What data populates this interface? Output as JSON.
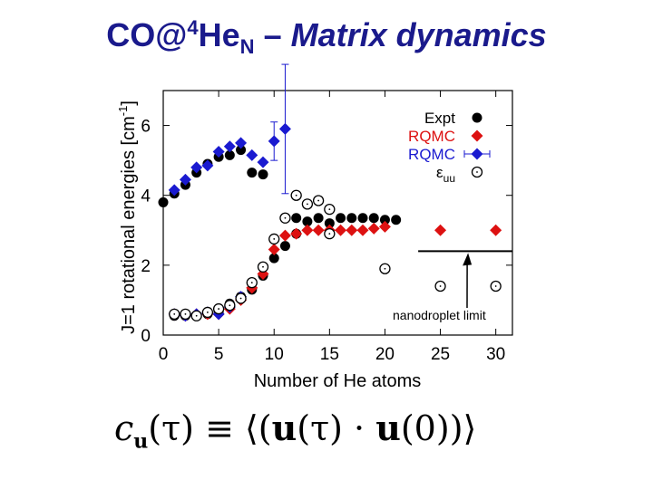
{
  "title": {
    "prefix": "CO@",
    "sup": "4",
    "species": "He",
    "sub": "N",
    "dash": " – ",
    "italic": "Matrix dynamics"
  },
  "formula": {
    "lhs": "c",
    "lhs_sub": "u",
    "lhs_arg": "(τ)",
    "equiv": " ≡ ",
    "rhs_open": "⟨(",
    "u1": "u",
    "arg1": "(τ)",
    "dot": " · ",
    "u2": "u",
    "arg2": "(0)",
    "rhs_close": ")⟩"
  },
  "chart_data": {
    "type": "scatter",
    "xlabel": "Number of He atoms",
    "ylabel": "J=1 rotational energies [cm",
    "ylabel_sup": "-1",
    "ylabel_end": "]",
    "xlim": [
      0,
      31.5
    ],
    "ylim": [
      0,
      7
    ],
    "xticks": [
      0,
      5,
      10,
      15,
      20,
      25,
      30
    ],
    "yticks": [
      0,
      2,
      4,
      6
    ],
    "grid": false,
    "legend": {
      "position": "top-right"
    },
    "annotation": {
      "text": "nanodroplet limit",
      "arrow_to": [
        27.5,
        2.4
      ]
    },
    "limit_line": {
      "x": [
        23,
        31.5
      ],
      "y": 2.4
    },
    "series": [
      {
        "name": "Expt",
        "marker": "filled-circle",
        "color": "#000000",
        "upper": [
          [
            0,
            3.8
          ],
          [
            1,
            4.05
          ],
          [
            2,
            4.3
          ],
          [
            3,
            4.65
          ],
          [
            4,
            4.9
          ],
          [
            5,
            5.1
          ],
          [
            6,
            5.15
          ],
          [
            7,
            5.3
          ],
          [
            8,
            4.65
          ],
          [
            9,
            4.6
          ],
          [
            12,
            3.35
          ],
          [
            13,
            3.25
          ],
          [
            14,
            3.35
          ],
          [
            15,
            3.2
          ],
          [
            16,
            3.35
          ],
          [
            17,
            3.35
          ],
          [
            18,
            3.35
          ],
          [
            19,
            3.35
          ],
          [
            20,
            3.3
          ],
          [
            21,
            3.3
          ]
        ],
        "lower": [
          [
            1,
            0.55
          ],
          [
            2,
            0.55
          ],
          [
            3,
            0.55
          ],
          [
            4,
            0.6
          ],
          [
            5,
            0.65
          ],
          [
            6,
            0.9
          ],
          [
            7,
            1.1
          ],
          [
            8,
            1.3
          ],
          [
            9,
            1.7
          ],
          [
            10,
            2.2
          ],
          [
            11,
            2.55
          ],
          [
            12,
            2.9
          ]
        ]
      },
      {
        "name": "RQMC",
        "marker": "filled-diamond",
        "color": "#dd1111",
        "upper": [],
        "lower": [
          [
            1,
            0.6
          ],
          [
            2,
            0.55
          ],
          [
            3,
            0.6
          ],
          [
            4,
            0.6
          ],
          [
            5,
            0.6
          ],
          [
            6,
            0.75
          ],
          [
            7,
            1.0
          ],
          [
            8,
            1.35
          ],
          [
            9,
            1.75
          ],
          [
            10,
            2.45
          ],
          [
            11,
            2.85
          ],
          [
            12,
            2.9
          ],
          [
            13,
            3.0
          ],
          [
            14,
            3.0
          ],
          [
            15,
            3.0
          ],
          [
            16,
            3.0
          ],
          [
            17,
            3.0
          ],
          [
            18,
            3.0
          ],
          [
            19,
            3.05
          ],
          [
            20,
            3.1
          ],
          [
            25,
            3.0
          ],
          [
            30,
            3.0
          ]
        ]
      },
      {
        "name": "RQMC",
        "marker": "filled-diamond",
        "color": "#1a1ad0",
        "upper": [
          [
            1,
            4.15
          ],
          [
            2,
            4.45
          ],
          [
            3,
            4.8
          ],
          [
            4,
            4.85
          ],
          [
            5,
            5.25
          ],
          [
            6,
            5.4
          ],
          [
            7,
            5.5
          ],
          [
            8,
            5.15
          ],
          [
            9,
            4.95
          ],
          [
            10,
            5.55
          ],
          [
            11,
            5.9
          ]
        ],
        "lower": [
          [
            1,
            0.6
          ],
          [
            2,
            0.55
          ],
          [
            3,
            0.6
          ],
          [
            4,
            0.65
          ],
          [
            5,
            0.6
          ],
          [
            6,
            0.8
          ],
          [
            7,
            1.1
          ]
        ],
        "errorbars": [
          [
            10,
            5.55,
            0.55
          ],
          [
            11,
            5.9,
            1.85
          ]
        ]
      },
      {
        "name": "εuu",
        "marker": "open-circle",
        "color": "#000000",
        "upper": [
          [
            12,
            4.0
          ],
          [
            13,
            3.75
          ],
          [
            14,
            3.85
          ],
          [
            15,
            3.6
          ]
        ],
        "lower": [
          [
            1,
            0.6
          ],
          [
            2,
            0.6
          ],
          [
            3,
            0.55
          ],
          [
            4,
            0.65
          ],
          [
            5,
            0.75
          ],
          [
            6,
            0.85
          ],
          [
            7,
            1.05
          ],
          [
            8,
            1.5
          ],
          [
            9,
            1.95
          ],
          [
            10,
            2.75
          ],
          [
            11,
            3.35
          ],
          [
            15,
            2.9
          ],
          [
            20,
            1.9
          ],
          [
            25,
            1.4
          ],
          [
            30,
            1.4
          ]
        ]
      }
    ]
  }
}
